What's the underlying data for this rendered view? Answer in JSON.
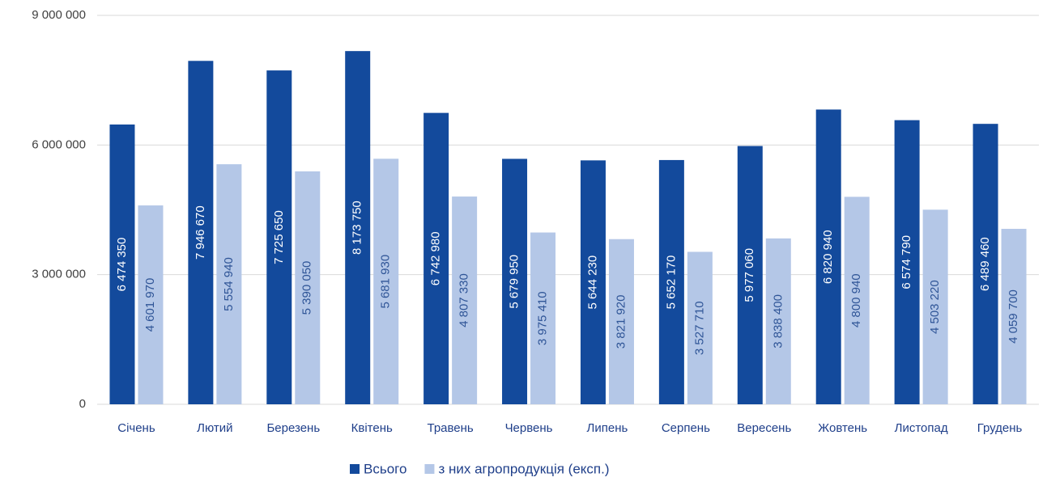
{
  "chart_data": {
    "type": "bar",
    "categories": [
      "Січень",
      "Лютий",
      "Березень",
      "Квітень",
      "Травень",
      "Червень",
      "Липень",
      "Серпень",
      "Вересень",
      "Жовтень",
      "Листопад",
      "Грудень"
    ],
    "series": [
      {
        "name": "Всього",
        "color": "#134a9c",
        "values": [
          6474350,
          7946670,
          7725650,
          8173750,
          6742980,
          5679950,
          5644230,
          5652170,
          5977060,
          6820940,
          6574790,
          6489460
        ],
        "value_labels": [
          "6 474 350",
          "7 946 670",
          "7 725 650",
          "8 173 750",
          "6 742 980",
          "5 679 950",
          "5 644 230",
          "5 652 170",
          "5 977 060",
          "6 820 940",
          "6 574 790",
          "6 489 460"
        ]
      },
      {
        "name": "з них агропродукція (експ.)",
        "color": "#b4c7e7",
        "values": [
          4601970,
          5554940,
          5390050,
          5681930,
          4807330,
          3975410,
          3821920,
          3527710,
          3838400,
          4800940,
          4503220,
          4059700
        ],
        "value_labels": [
          "4 601 970",
          "5 554 940",
          "5 390 050",
          "5 681 930",
          "4 807 330",
          "3 975 410",
          "3 821 920",
          "3 527 710",
          "3 838 400",
          "4 800 940",
          "4 503 220",
          "4 059 700"
        ]
      }
    ],
    "ylim": [
      0,
      9000000
    ],
    "yticks": [
      {
        "value": 0,
        "label": "0"
      },
      {
        "value": 3000000,
        "label": "3 000 000"
      },
      {
        "value": 6000000,
        "label": "6 000 000"
      },
      {
        "value": 9000000,
        "label": "9 000 000"
      }
    ],
    "grid": true,
    "legend": "bottom"
  }
}
